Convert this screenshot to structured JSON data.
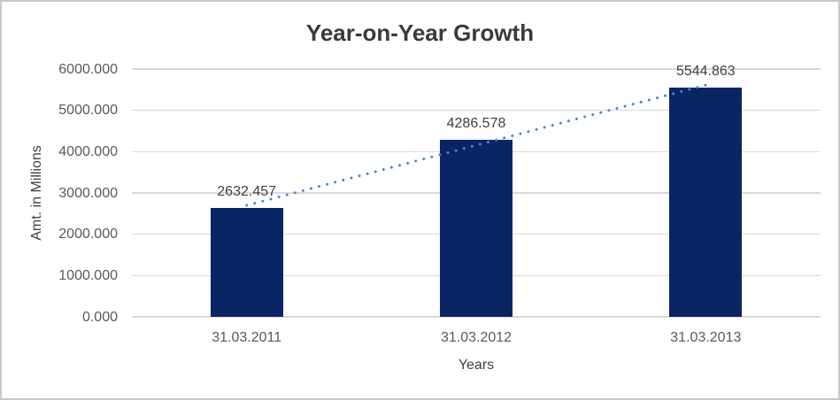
{
  "chart": {
    "title": "Year-on-Year Growth",
    "xlabel": "Years",
    "ylabel": "Amt. in Millions"
  },
  "chart_data": {
    "type": "bar",
    "title": "Year-on-Year Growth",
    "categories": [
      "31.03.2011",
      "31.03.2012",
      "31.03.2013"
    ],
    "values": [
      2632.457,
      4286.578,
      5544.863
    ],
    "data_labels": [
      "2632.457",
      "4286.578",
      "5544.863"
    ],
    "xlabel": "Years",
    "ylabel": "Amt. in Millions",
    "ylim": [
      0,
      6000
    ],
    "ytick_step": 1000,
    "ytick_labels": [
      "0.000",
      "1000.000",
      "2000.000",
      "3000.000",
      "4000.000",
      "5000.000",
      "6000.000"
    ],
    "grid": true,
    "legend": false,
    "bar_color": "#0a2564",
    "trendline": {
      "type": "linear",
      "style": "dotted",
      "color": "#4e86c8"
    }
  }
}
